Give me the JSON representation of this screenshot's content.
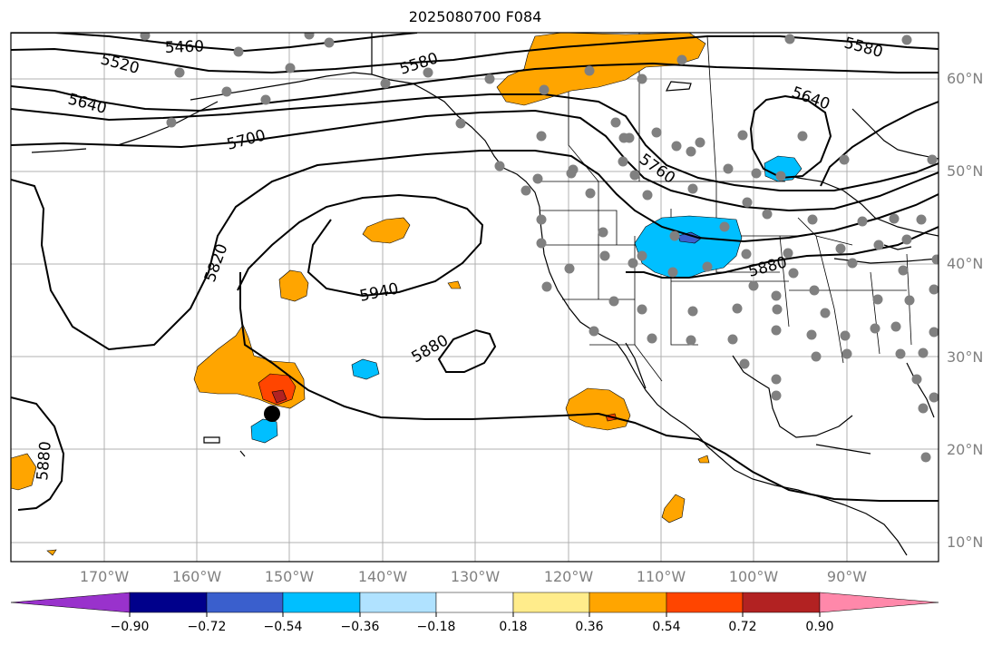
{
  "title": "2025080700 F084",
  "lat_labels": [
    "60°N",
    "50°N",
    "40°N",
    "30°N",
    "20°N",
    "10°N"
  ],
  "lon_labels": [
    "170°W",
    "160°W",
    "150°W",
    "140°W",
    "130°W",
    "120°W",
    "110°W",
    "100°W",
    "90°W"
  ],
  "contour_labels": [
    "5460",
    "5520",
    "5580",
    "5580",
    "5640",
    "5640",
    "5700",
    "5760",
    "5820",
    "5880",
    "5880",
    "5880",
    "5940"
  ],
  "colorbar": {
    "ticks": [
      "−0.90",
      "−0.72",
      "−0.54",
      "−0.36",
      "−0.18",
      "0.18",
      "0.36",
      "0.54",
      "0.72",
      "0.90"
    ],
    "colors": [
      "#9932cc",
      "#00008b",
      "#3a5fcd",
      "#00bfff",
      "#b0e2ff",
      "#ffffff",
      "#ffec8b",
      "#ffa500",
      "#ff4500",
      "#b22222",
      "#ff88aa"
    ]
  },
  "anomaly_colors": {
    "orange": "#ffa500",
    "red_orange": "#ff4500",
    "dark_red": "#b22222",
    "deep_sky_blue": "#00bfff",
    "slate_blue": "#3a5fcd"
  }
}
